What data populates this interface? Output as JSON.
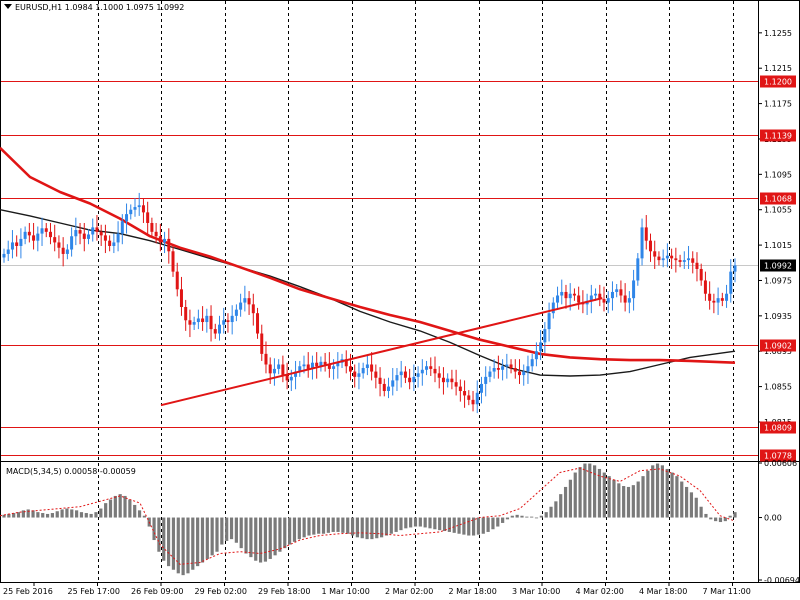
{
  "symbol_header": "EURUSD,H1  1.0984 1.1000 1.0975 1.0992",
  "colors": {
    "bull": "#2f86e8",
    "bear": "#e01515",
    "hline": "#e01515",
    "ma_red": "#e01515",
    "ma_black": "#1a1a1a",
    "macd_hist": "#7a7a7a",
    "macd_signal": "#e01515",
    "current_price_line": "#c8c8c8",
    "vgrid": "#000000"
  },
  "chart_data": [
    {
      "type": "candlestick",
      "title": "EURUSD,H1",
      "ohlc": {
        "open": 1.0984,
        "high": 1.1,
        "low": 1.0975,
        "close": 1.0992
      },
      "ylim": [
        1.0772,
        1.1291
      ],
      "y_ticks": [
        "1.1255",
        "1.1215",
        "1.1175",
        "1.1135",
        "1.1095",
        "1.1055",
        "1.1015",
        "1.0975",
        "1.0935",
        "1.0895",
        "1.0855",
        "1.0815"
      ],
      "price_levels": [
        {
          "label": "1.1200",
          "value": 1.12
        },
        {
          "label": "1.1139",
          "value": 1.1139
        },
        {
          "label": "1.1068",
          "value": 1.1068
        },
        {
          "label": "1.0902",
          "value": 1.0902
        },
        {
          "label": "1.0809",
          "value": 1.0809
        },
        {
          "label": "1.0778",
          "value": 1.0778
        }
      ],
      "current_price": {
        "label": "1.0992",
        "value": 1.0992
      },
      "x_labels": [
        "25 Feb 2016",
        "25 Feb 17:00",
        "26 Feb 09:00",
        "29 Feb 02:00",
        "29 Feb 18:00",
        "1 Mar 10:00",
        "2 Mar 02:00",
        "2 Mar 18:00",
        "3 Mar 10:00",
        "4 Mar 02:00",
        "4 Mar 18:00",
        "7 Mar 11:00"
      ],
      "closes": [
        1.1005,
        1.101,
        1.1018,
        1.1014,
        1.1022,
        1.103,
        1.1026,
        1.102,
        1.1028,
        1.1034,
        1.103,
        1.1024,
        1.1018,
        1.1012,
        1.1005,
        1.101,
        1.1025,
        1.1032,
        1.1028,
        1.1022,
        1.1027,
        1.1035,
        1.103,
        1.1026,
        1.102,
        1.1014,
        1.1018,
        1.1028,
        1.1042,
        1.105,
        1.1055,
        1.1058,
        1.106,
        1.1052,
        1.104,
        1.103,
        1.1025,
        1.1018,
        1.1022,
        1.1008,
        1.0985,
        1.0965,
        1.0945,
        1.093,
        1.0925,
        1.0928,
        1.0932,
        1.0928,
        1.0935,
        1.092,
        1.0915,
        1.0925,
        1.093,
        1.0928,
        1.0935,
        1.0942,
        1.095,
        1.0955,
        1.0948,
        1.0938,
        1.0915,
        1.0892,
        1.088,
        1.087,
        1.0875,
        1.088,
        1.0868,
        1.0862,
        1.0866,
        1.0872,
        1.0878,
        1.088,
        1.0875,
        1.0882,
        1.0878,
        1.0883,
        1.088,
        1.0875,
        1.0878,
        1.0882,
        1.0886,
        1.0878,
        1.0872,
        1.0866,
        1.087,
        1.0876,
        1.088,
        1.0872,
        1.0865,
        1.0858,
        1.085,
        1.0855,
        1.0862,
        1.0868,
        1.0872,
        1.0865,
        1.086,
        1.0866,
        1.087,
        1.0874,
        1.0878,
        1.0875,
        1.087,
        1.0865,
        1.086,
        1.0864,
        1.086,
        1.0855,
        1.085,
        1.0845,
        1.084,
        1.0835,
        1.0848,
        1.0858,
        1.0866,
        1.0872,
        1.0876,
        1.0874,
        1.0878,
        1.088,
        1.0876,
        1.0872,
        1.0868,
        1.0872,
        1.0878,
        1.0886,
        1.0895,
        1.0905,
        1.092,
        1.0938,
        1.095,
        1.0958,
        1.0962,
        1.0955,
        1.096,
        1.0958,
        1.095,
        1.0948,
        1.0952,
        1.0958,
        1.096,
        1.0954,
        1.095,
        1.0955,
        1.0962,
        1.0965,
        1.0958,
        1.095,
        1.0955,
        1.0975,
        1.1,
        1.1035,
        1.102,
        1.1008,
        1.1002,
        1.0998,
        1.1,
        1.1003,
        1.1,
        1.0998,
        1.0996,
        1.0998,
        1.1,
        1.0995,
        1.0988,
        1.0975,
        1.096,
        1.0952,
        1.095,
        1.0955,
        1.0952,
        1.096,
        1.0985,
        1.0992
      ],
      "ma_red": [
        [
          0,
          1.1125
        ],
        [
          30,
          1.1092
        ],
        [
          60,
          1.1075
        ],
        [
          90,
          1.1062
        ],
        [
          120,
          1.1045
        ],
        [
          150,
          1.1025
        ],
        [
          180,
          1.1012
        ],
        [
          210,
          1.1002
        ],
        [
          240,
          1.099
        ],
        [
          270,
          1.0978
        ],
        [
          300,
          1.0965
        ],
        [
          330,
          1.0955
        ],
        [
          360,
          1.0945
        ],
        [
          390,
          1.0936
        ],
        [
          420,
          1.0928
        ],
        [
          450,
          1.0918
        ],
        [
          480,
          1.0908
        ],
        [
          510,
          1.09
        ],
        [
          540,
          1.0892
        ],
        [
          570,
          1.0888
        ],
        [
          600,
          1.0886
        ],
        [
          630,
          1.0885
        ],
        [
          660,
          1.0885
        ],
        [
          690,
          1.0884
        ],
        [
          735,
          1.0882
        ]
      ],
      "ma_black": [
        [
          0,
          1.1055
        ],
        [
          30,
          1.1048
        ],
        [
          60,
          1.104
        ],
        [
          90,
          1.1032
        ],
        [
          120,
          1.1028
        ],
        [
          150,
          1.102
        ],
        [
          180,
          1.101
        ],
        [
          210,
          1.1
        ],
        [
          240,
          1.099
        ],
        [
          270,
          1.098
        ],
        [
          300,
          1.0968
        ],
        [
          330,
          1.0955
        ],
        [
          360,
          1.094
        ],
        [
          390,
          1.0928
        ],
        [
          420,
          1.0918
        ],
        [
          450,
          1.0905
        ],
        [
          480,
          1.089
        ],
        [
          510,
          1.0876
        ],
        [
          540,
          1.0868
        ],
        [
          570,
          1.0867
        ],
        [
          600,
          1.0868
        ],
        [
          630,
          1.0872
        ],
        [
          660,
          1.088
        ],
        [
          690,
          1.0888
        ],
        [
          735,
          1.0895
        ]
      ],
      "trendlines": [
        {
          "from": [
            2.0,
            1.0834
          ],
          "to": [
            8.95,
            1.0955
          ]
        }
      ]
    },
    {
      "type": "bar",
      "title": "MACD(5,34,5) 0.00058 -0.00059",
      "ylim": [
        -0.00694,
        0.00606
      ],
      "y_ticks": [
        "0.00606",
        "0.00",
        "-0.00694"
      ],
      "histogram": [
        0.0003,
        0.0004,
        0.0005,
        0.0006,
        0.0008,
        0.0009,
        0.0008,
        0.0006,
        0.0005,
        0.0004,
        0.0005,
        0.0007,
        0.0009,
        0.001,
        0.0009,
        0.0008,
        0.0006,
        0.0005,
        0.0004,
        0.0006,
        0.001,
        0.0016,
        0.002,
        0.0024,
        0.0026,
        0.0024,
        0.002,
        0.0014,
        0.0008,
        0.0002,
        -0.001,
        -0.0025,
        -0.0038,
        -0.0048,
        -0.0054,
        -0.0058,
        -0.0062,
        -0.0064,
        -0.0062,
        -0.0058,
        -0.0054,
        -0.005,
        -0.0046,
        -0.0042,
        -0.0038,
        -0.003,
        -0.0026,
        -0.0024,
        -0.0028,
        -0.0034,
        -0.004,
        -0.0044,
        -0.0048,
        -0.005,
        -0.0049,
        -0.0046,
        -0.0042,
        -0.0038,
        -0.0034,
        -0.003,
        -0.0027,
        -0.0024,
        -0.0022,
        -0.002,
        -0.0019,
        -0.0018,
        -0.0018,
        -0.0017,
        -0.0016,
        -0.0016,
        -0.0017,
        -0.0018,
        -0.002,
        -0.0022,
        -0.0023,
        -0.0024,
        -0.0024,
        -0.0023,
        -0.0022,
        -0.002,
        -0.0018,
        -0.0016,
        -0.0014,
        -0.0012,
        -0.0011,
        -0.001,
        -0.001,
        -0.0011,
        -0.0012,
        -0.0013,
        -0.0014,
        -0.0015,
        -0.0016,
        -0.0017,
        -0.0018,
        -0.0019,
        -0.002,
        -0.002,
        -0.0019,
        -0.0018,
        -0.0016,
        -0.0013,
        -0.001,
        -0.0006,
        -0.0002,
        0.0002,
        0.0003,
        0.0002,
        0.0001,
        0.0001,
        0.0,
        0.0002,
        0.0006,
        0.0012,
        0.0018,
        0.0026,
        0.0034,
        0.0042,
        0.005,
        0.0056,
        0.006,
        0.006,
        0.0058,
        0.0054,
        0.005,
        0.0046,
        0.0042,
        0.0038,
        0.0035,
        0.0034,
        0.0036,
        0.004,
        0.0046,
        0.0052,
        0.0058,
        0.006,
        0.0058,
        0.0054,
        0.005,
        0.0046,
        0.004,
        0.0034,
        0.0028,
        0.0022,
        0.0012,
        0.0004,
        -0.0002,
        -0.0004,
        -0.0005,
        -0.0004,
        0.0002,
        0.0006
      ],
      "signal": [
        [
          0,
          0.0002
        ],
        [
          20,
          0.0006
        ],
        [
          40,
          0.0008
        ],
        [
          60,
          0.001
        ],
        [
          80,
          0.0012
        ],
        [
          100,
          0.0018
        ],
        [
          120,
          0.0024
        ],
        [
          140,
          0.0016
        ],
        [
          160,
          -0.003
        ],
        [
          180,
          -0.0052
        ],
        [
          200,
          -0.005
        ],
        [
          220,
          -0.004
        ],
        [
          240,
          -0.0038
        ],
        [
          260,
          -0.004
        ],
        [
          280,
          -0.0035
        ],
        [
          300,
          -0.0025
        ],
        [
          320,
          -0.002
        ],
        [
          340,
          -0.0018
        ],
        [
          360,
          -0.0017
        ],
        [
          380,
          -0.0018
        ],
        [
          400,
          -0.002
        ],
        [
          420,
          -0.0018
        ],
        [
          440,
          -0.0016
        ],
        [
          460,
          -0.0008
        ],
        [
          480,
          0.0
        ],
        [
          500,
          0.0002
        ],
        [
          520,
          0.001
        ],
        [
          540,
          0.003
        ],
        [
          560,
          0.005
        ],
        [
          580,
          0.0055
        ],
        [
          600,
          0.0046
        ],
        [
          620,
          0.004
        ],
        [
          640,
          0.0052
        ],
        [
          660,
          0.0054
        ],
        [
          680,
          0.0046
        ],
        [
          700,
          0.003
        ],
        [
          720,
          0.0002
        ],
        [
          735,
          -0.0004
        ]
      ]
    }
  ]
}
